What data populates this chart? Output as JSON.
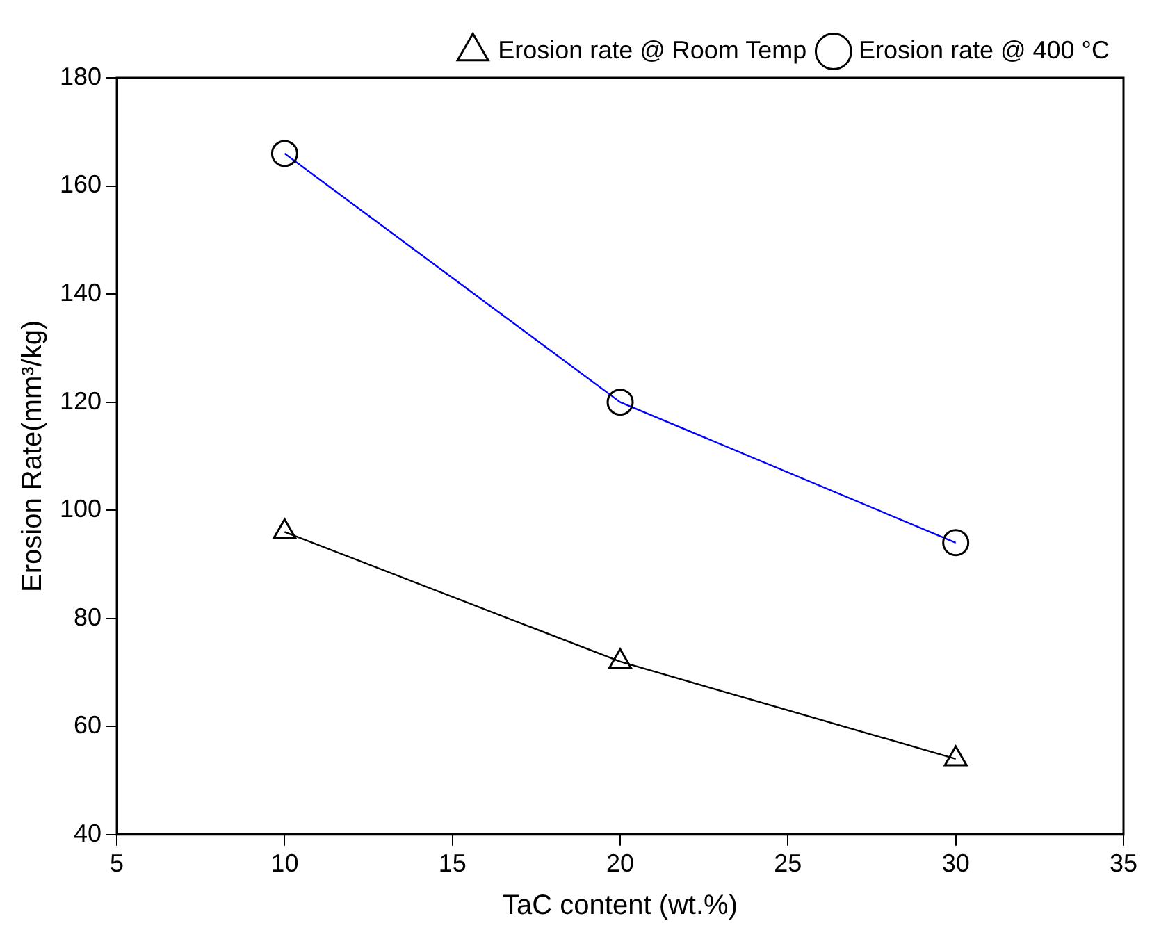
{
  "chart_data": {
    "type": "line",
    "xlabel": "TaC content (wt.%)",
    "ylabel": "Erosion Rate(mm³/kg)",
    "x": [
      10,
      20,
      30
    ],
    "series": [
      {
        "name": "Erosion rate @ Room Temp",
        "color": "#000000",
        "values": [
          96,
          72,
          54
        ],
        "marker": "triangle"
      },
      {
        "name": "Erosion rate @ 400 °C",
        "color": "#0000ff",
        "values": [
          166,
          120,
          94
        ],
        "marker": "circle"
      }
    ],
    "xlim": [
      5,
      35
    ],
    "xticks": [
      5,
      10,
      15,
      20,
      25,
      30,
      35
    ],
    "ylim": [
      40,
      180
    ],
    "yticks": [
      40,
      60,
      80,
      100,
      120,
      140,
      160,
      180
    ],
    "grid": false,
    "legend": "top right",
    "line_style": "solid"
  }
}
